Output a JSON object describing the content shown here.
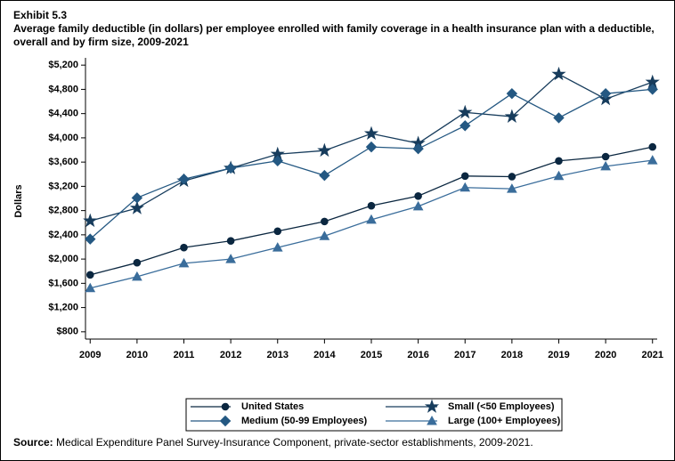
{
  "exhibit": "Exhibit 5.3",
  "chart_data": {
    "type": "line",
    "title": "Average family deductible (in dollars) per employee enrolled with family coverage in a health insurance plan with a deductible, overall and by firm size, 2009-2021",
    "y_label": "Dollars",
    "x": [
      2009,
      2010,
      2011,
      2012,
      2013,
      2014,
      2015,
      2016,
      2017,
      2018,
      2019,
      2020,
      2021
    ],
    "xlim": [
      2008.9,
      2021.1
    ],
    "xticks": [
      2009,
      2010,
      2011,
      2012,
      2013,
      2014,
      2015,
      2016,
      2017,
      2018,
      2019,
      2020,
      2021
    ],
    "ylim": [
      680,
      5320
    ],
    "yticks": [
      {
        "value": 800,
        "label": "$800"
      },
      {
        "value": 1200,
        "label": "$1,200"
      },
      {
        "value": 1600,
        "label": "$1,600"
      },
      {
        "value": 2000,
        "label": "$2,000"
      },
      {
        "value": 2400,
        "label": "$2,400"
      },
      {
        "value": 2800,
        "label": "$2,800"
      },
      {
        "value": 3200,
        "label": "$3,200"
      },
      {
        "value": 3600,
        "label": "$3,600"
      },
      {
        "value": 4000,
        "label": "$4,000"
      },
      {
        "value": 4400,
        "label": "$4,400"
      },
      {
        "value": 4800,
        "label": "$4,800"
      },
      {
        "value": 5200,
        "label": "$5,200"
      }
    ],
    "series": [
      {
        "name": "United States",
        "color": "#0b2740",
        "marker": "circle",
        "values": [
          1740,
          1940,
          2190,
          2300,
          2460,
          2620,
          2880,
          3040,
          3370,
          3360,
          3620,
          3690,
          3850
        ]
      },
      {
        "name": "Small (<50 Employees)",
        "color": "#173c5c",
        "marker": "star",
        "values": [
          2630,
          2840,
          3290,
          3500,
          3730,
          3790,
          4070,
          3910,
          4420,
          4350,
          5050,
          4640,
          4920
        ]
      },
      {
        "name": "Medium (50-99 Employees)",
        "color": "#245882",
        "marker": "diamond",
        "values": [
          2330,
          3010,
          3320,
          3500,
          3620,
          3380,
          3850,
          3820,
          4200,
          4730,
          4330,
          4730,
          4800
        ]
      },
      {
        "name": "Large (100+ Employees)",
        "color": "#3a6d9b",
        "marker": "triangle",
        "values": [
          1520,
          1710,
          1930,
          2000,
          2190,
          2380,
          2650,
          2870,
          3180,
          3160,
          3370,
          3530,
          3630
        ]
      }
    ]
  },
  "source": {
    "label": "Source:",
    "text": "Medical Expenditure Panel Survey-Insurance Component, private-sector establishments, 2009-2021."
  }
}
